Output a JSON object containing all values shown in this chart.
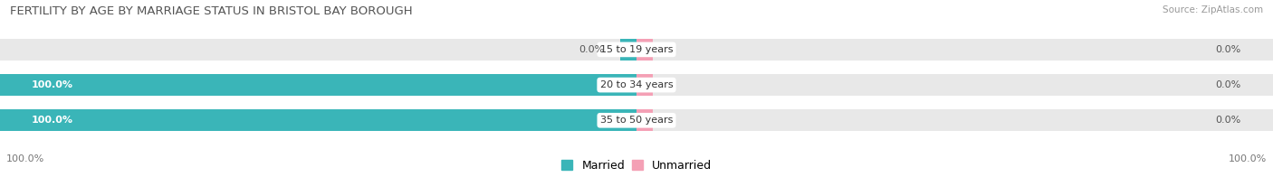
{
  "title": "FERTILITY BY AGE BY MARRIAGE STATUS IN BRISTOL BAY BOROUGH",
  "source": "Source: ZipAtlas.com",
  "categories": [
    "15 to 19 years",
    "20 to 34 years",
    "35 to 50 years"
  ],
  "married_values": [
    0.0,
    100.0,
    100.0
  ],
  "unmarried_values": [
    0.0,
    0.0,
    0.0
  ],
  "married_color": "#3ab5b8",
  "unmarried_color": "#f4a0b5",
  "bar_bg_color": "#e8e8e8",
  "bar_height": 0.62,
  "xlim_left": -100,
  "xlim_right": 100,
  "title_fontsize": 9.5,
  "label_fontsize": 8.0,
  "tick_fontsize": 8.0,
  "legend_fontsize": 9,
  "fig_bg_color": "#ffffff",
  "source_fontsize": 7.5,
  "note_small_married": 3.0,
  "note_small_unmarried": 3.0
}
